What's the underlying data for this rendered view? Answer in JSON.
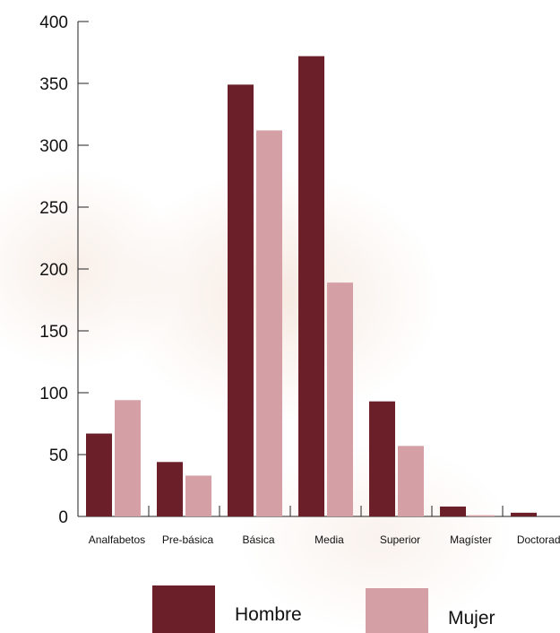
{
  "chart_data": {
    "type": "bar",
    "categories": [
      "Analfabetos",
      "Pre-básica",
      "Básica",
      "Media",
      "Superior",
      "Magíster",
      "Doctorado"
    ],
    "series": [
      {
        "name": "Hombre",
        "color": "#6b1f28",
        "values": [
          67,
          44,
          349,
          372,
          93,
          8,
          3
        ]
      },
      {
        "name": "Mujer",
        "color": "#d4a0a6",
        "values": [
          94,
          33,
          312,
          189,
          57,
          1,
          0
        ]
      }
    ],
    "y_ticks": [
      0,
      50,
      100,
      150,
      200,
      250,
      300,
      350,
      400
    ],
    "ylim": [
      0,
      400
    ],
    "title": "",
    "xlabel": "",
    "ylabel": "",
    "grid": false,
    "legend_position": "bottom"
  }
}
